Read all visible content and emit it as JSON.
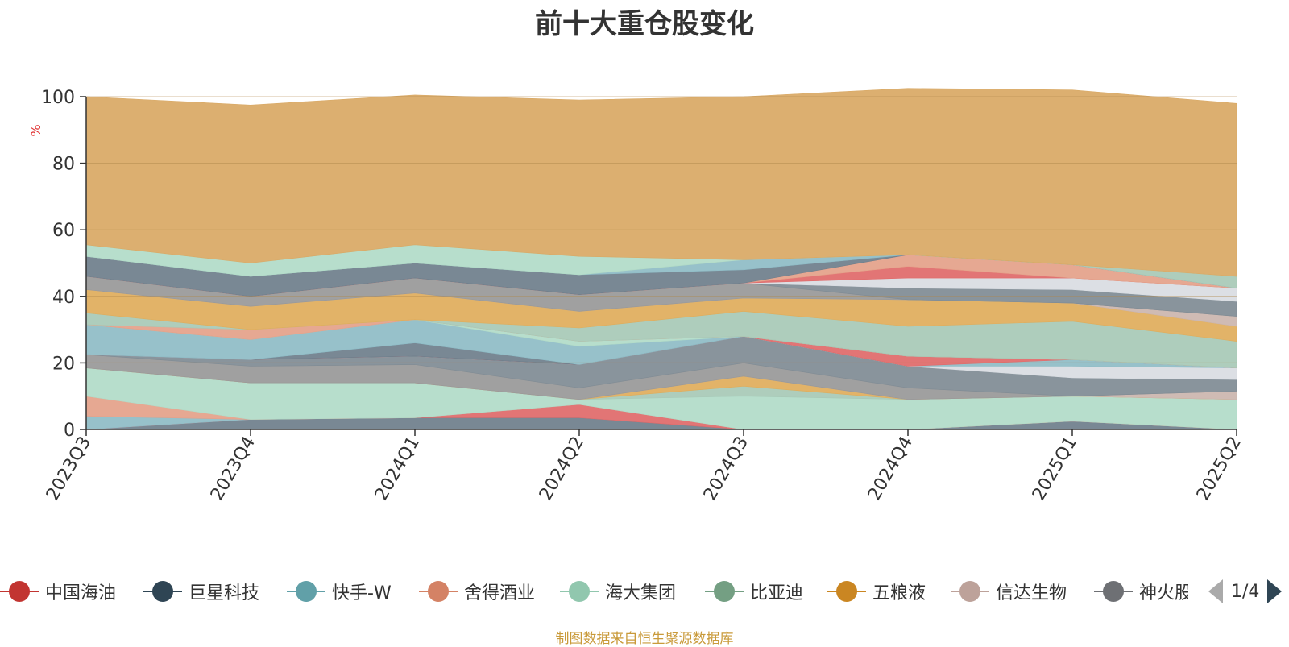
{
  "title": "前十大重仓股变化",
  "source_note": "制图数据来自恒生聚源数据库",
  "legend_page": "1/4",
  "icons": {
    "prev": "arrow-left-icon",
    "next": "arrow-right-icon"
  },
  "chart_data": {
    "type": "area",
    "stacked": true,
    "title": "前十大重仓股变化",
    "ylabel": "%",
    "ylim": [
      0,
      100
    ],
    "yticks": [
      0,
      20,
      40,
      60,
      80,
      100
    ],
    "grid": true,
    "legend_position": "bottom",
    "categories": [
      "2023Q3",
      "2023Q4",
      "2024Q1",
      "2024Q2",
      "2024Q3",
      "2024Q4",
      "2025Q1",
      "2025Q2"
    ],
    "layers": [
      {
        "color": "#6f7f8c",
        "values": [
          0,
          3,
          3.5,
          3.5,
          0,
          0,
          2.5,
          0
        ]
      },
      {
        "color": "#e06b6b",
        "values": [
          0,
          0,
          0,
          4,
          0,
          0,
          0,
          0
        ]
      },
      {
        "color": "#8fbcc6",
        "values": [
          4,
          0,
          0,
          0,
          0,
          0,
          0,
          0
        ]
      },
      {
        "color": "#e4a18a",
        "values": [
          6,
          0,
          0,
          0,
          0,
          0,
          0,
          0
        ]
      },
      {
        "color": "#b2dbc8",
        "values": [
          8.5,
          11,
          10.5,
          1.5,
          10,
          9,
          7.5,
          9
        ]
      },
      {
        "color": "#a8c9b7",
        "values": [
          0,
          0,
          0,
          0,
          3,
          0,
          0,
          0
        ]
      },
      {
        "color": "#e0ad5c",
        "values": [
          0,
          0,
          0,
          0,
          3,
          0,
          0,
          0
        ]
      },
      {
        "color": "#cbb6ae",
        "values": [
          0,
          0,
          0,
          0,
          0,
          0,
          0,
          2.5
        ]
      },
      {
        "color": "#999999",
        "values": [
          4,
          5,
          5.5,
          3.5,
          4,
          3.5,
          0,
          0
        ]
      },
      {
        "color": "#808c95",
        "values": [
          0,
          2,
          2.5,
          7,
          8,
          6.5,
          5.5,
          3.5
        ]
      },
      {
        "color": "#d9dde2",
        "values": [
          0,
          0,
          0,
          0,
          0,
          0,
          3.5,
          3.5
        ]
      },
      {
        "color": "#8fbcc6",
        "values": [
          0,
          0,
          0,
          0,
          0,
          0,
          2,
          0
        ]
      },
      {
        "color": "#e06b6b",
        "values": [
          0,
          0,
          0,
          0,
          0,
          3,
          0,
          0
        ]
      },
      {
        "color": "#6f7f8c",
        "values": [
          0,
          0,
          4,
          0,
          0,
          0,
          0,
          0
        ]
      },
      {
        "color": "#8fbcc6",
        "values": [
          9,
          6,
          7,
          5.5,
          0,
          0,
          0,
          0
        ]
      },
      {
        "color": "#b2dbc8",
        "values": [
          0,
          0,
          0,
          1.5,
          0,
          0,
          0,
          0
        ]
      },
      {
        "color": "#e4a18a",
        "values": [
          0,
          3,
          0,
          0,
          0,
          0,
          0,
          0
        ]
      },
      {
        "color": "#a8c9b7",
        "values": [
          3.5,
          0,
          0,
          4,
          7.5,
          9,
          11.5,
          8
        ]
      },
      {
        "color": "#e0ad5c",
        "values": [
          7,
          7,
          8,
          5,
          4,
          8,
          5.5,
          4.5
        ]
      },
      {
        "color": "#cbb6ae",
        "values": [
          0,
          0,
          0,
          0,
          0,
          0,
          0,
          3
        ]
      },
      {
        "color": "#999999",
        "values": [
          4,
          3,
          4.5,
          5,
          4.5,
          0,
          0,
          0
        ]
      },
      {
        "color": "#808c95",
        "values": [
          0,
          0,
          0,
          0,
          0,
          3.5,
          4,
          4.5
        ]
      },
      {
        "color": "#d9dde2",
        "values": [
          0,
          0,
          0,
          0,
          0,
          3,
          3.5,
          4
        ]
      },
      {
        "color": "#e06b6b",
        "values": [
          0,
          0,
          0,
          0,
          0,
          3.5,
          0,
          0
        ]
      },
      {
        "color": "#e4a18a",
        "values": [
          0,
          0,
          0,
          0,
          0,
          3.5,
          4,
          0
        ]
      },
      {
        "color": "#6f7f8c",
        "values": [
          6,
          6,
          4.5,
          6,
          4,
          0,
          0,
          0
        ]
      },
      {
        "color": "#8fbcc6",
        "values": [
          0,
          0,
          0,
          0,
          3,
          0,
          0,
          0
        ]
      },
      {
        "color": "#a8c9b7",
        "values": [
          0,
          0,
          0,
          0,
          0,
          0,
          0,
          3.5
        ]
      },
      {
        "color": "#b2dbc8",
        "values": [
          3.5,
          4,
          5.5,
          5.5,
          0,
          0,
          0,
          0
        ]
      },
      {
        "color": "#d9a965",
        "values": [
          44.5,
          47.5,
          45,
          47,
          49,
          50,
          52.5,
          52
        ]
      }
    ],
    "legend": [
      {
        "name": "中国海油",
        "color": "#c23531"
      },
      {
        "name": "巨星科技",
        "color": "#2f4554"
      },
      {
        "name": "快手-W",
        "color": "#61a0a8"
      },
      {
        "name": "舍得酒业",
        "color": "#d48265"
      },
      {
        "name": "海大集团",
        "color": "#91c7ae"
      },
      {
        "name": "比亚迪",
        "color": "#749f83"
      },
      {
        "name": "五粮液",
        "color": "#ca8622"
      },
      {
        "name": "信达生物",
        "color": "#bda29a"
      },
      {
        "name": "神火股份",
        "color": "#6e7074"
      }
    ]
  }
}
